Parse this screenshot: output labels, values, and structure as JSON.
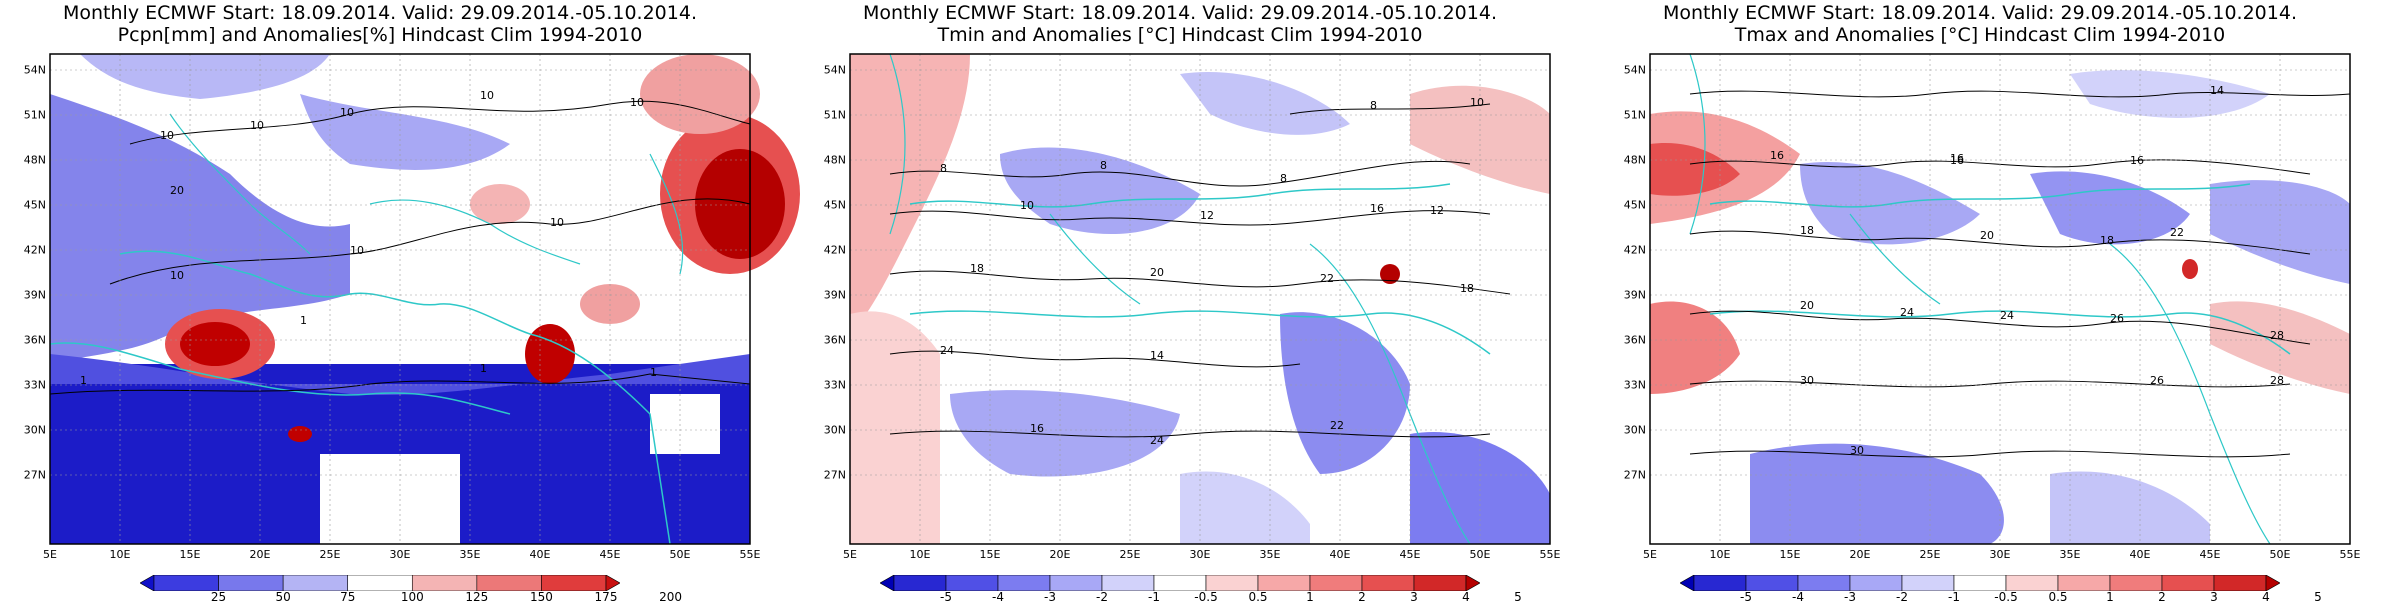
{
  "panels": [
    {
      "title_line1": "Monthly ECMWF Start: 18.09.2014. Valid: 29.09.2014.-05.10.2014.",
      "title_line2": "Pcpn[mm] and Anomalies[%] Hindcast Clim 1994-2010",
      "field": "precip",
      "colorbar_labels": [
        "25",
        "50",
        "75",
        "100",
        "125",
        "150",
        "175",
        "200"
      ],
      "colorbar_colors": [
        "#1010c8",
        "#3c3ce0",
        "#7878ec",
        "#b4b4f4",
        "#ffffff",
        "#f4b4b4",
        "#ec7878",
        "#e03c3c",
        "#c81010"
      ],
      "contour_labels": [
        "10",
        "10",
        "10",
        "10",
        "10",
        "10",
        "10",
        "10",
        "1",
        "1",
        "1",
        "1",
        "20"
      ]
    },
    {
      "title_line1": "Monthly ECMWF Start: 18.09.2014. Valid: 29.09.2014.-05.10.2014.",
      "title_line2": "Tmin and Anomalies [°C] Hindcast Clim 1994-2010",
      "field": "tmin",
      "colorbar_labels": [
        "-5",
        "-4",
        "-3",
        "-2",
        "-1",
        "-0.5",
        "0.5",
        "1",
        "2",
        "3",
        "4",
        "5"
      ],
      "colorbar_colors": [
        "#0000b4",
        "#2828d2",
        "#5050e6",
        "#7c7cf0",
        "#a8a8f6",
        "#d2d2fa",
        "#ffffff",
        "#fad2d2",
        "#f6a8a8",
        "#f07c7c",
        "#e65050",
        "#d22828",
        "#b40000"
      ],
      "contour_labels": [
        "8",
        "8",
        "8",
        "10",
        "12",
        "16",
        "18",
        "20",
        "22",
        "24",
        "18",
        "14",
        "16",
        "22",
        "24",
        "8",
        "10",
        "12"
      ]
    },
    {
      "title_line1": "Monthly ECMWF Start: 18.09.2014. Valid: 29.09.2014.-05.10.2014.",
      "title_line2": "Tmax and Anomalies [°C] Hindcast Clim 1994-2010",
      "field": "tmax",
      "colorbar_labels": [
        "-5",
        "-4",
        "-3",
        "-2",
        "-1",
        "-0.5",
        "0.5",
        "1",
        "2",
        "3",
        "4",
        "5"
      ],
      "colorbar_colors": [
        "#0000b4",
        "#2828d2",
        "#5050e6",
        "#7c7cf0",
        "#a8a8f6",
        "#d2d2fa",
        "#ffffff",
        "#fad2d2",
        "#f6a8a8",
        "#f07c7c",
        "#e65050",
        "#d22828",
        "#b40000"
      ],
      "contour_labels": [
        "14",
        "16",
        "16",
        "16",
        "18",
        "20",
        "22",
        "24",
        "26",
        "28",
        "30",
        "16",
        "18",
        "20",
        "24",
        "26",
        "28",
        "30"
      ]
    }
  ],
  "lat_labels": [
    "54N",
    "51N",
    "48N",
    "45N",
    "42N",
    "39N",
    "36N",
    "33N",
    "30N",
    "27N"
  ],
  "lon_labels": [
    "5E",
    "10E",
    "15E",
    "20E",
    "25E",
    "30E",
    "35E",
    "40E",
    "45E",
    "50E",
    "55E"
  ],
  "colors": {
    "coastline": "#2ec8c8",
    "contour": "#000000",
    "grid": "#9a9a9a"
  }
}
